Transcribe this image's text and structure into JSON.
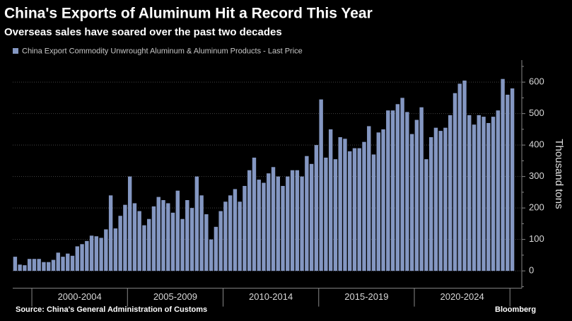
{
  "chart_data": {
    "type": "bar",
    "title": "China's Exports of Aluminum Hit a Record This Year",
    "subtitle": "Overseas sales have soared over the past two decades",
    "series": [
      {
        "name": "China Export Commodity Unwrought Aluminum & Aluminum Products - Last Price",
        "color": "#8497c2",
        "values": [
          45,
          20,
          18,
          38,
          38,
          38,
          28,
          28,
          35,
          58,
          45,
          55,
          48,
          78,
          85,
          95,
          112,
          110,
          105,
          132,
          240,
          135,
          175,
          210,
          300,
          215,
          190,
          145,
          165,
          205,
          235,
          225,
          215,
          185,
          255,
          165,
          225,
          200,
          300,
          240,
          180,
          100,
          140,
          190,
          220,
          240,
          260,
          220,
          270,
          320,
          360,
          290,
          280,
          310,
          330,
          300,
          270,
          300,
          320,
          320,
          300,
          365,
          340,
          400,
          545,
          360,
          450,
          355,
          425,
          420,
          380,
          390,
          390,
          410,
          460,
          370,
          440,
          450,
          510,
          510,
          530,
          550,
          505,
          435,
          480,
          520,
          355,
          425,
          455,
          445,
          455,
          495,
          565,
          595,
          605,
          495,
          465,
          495,
          490,
          470,
          490,
          510,
          610,
          560,
          580
        ]
      }
    ],
    "categories": [
      null,
      null,
      null,
      null,
      null,
      null,
      null,
      null,
      null,
      null,
      null,
      null,
      null,
      null,
      null,
      null,
      null,
      null,
      null,
      null,
      null,
      null,
      null,
      null,
      null,
      null,
      null,
      null,
      null,
      null,
      null,
      null,
      null,
      null,
      null,
      null,
      null,
      null,
      null,
      null,
      null,
      null,
      null,
      null,
      null,
      null,
      null,
      null,
      null,
      null,
      null,
      null,
      null,
      null,
      null,
      null,
      null,
      null,
      null,
      null,
      null,
      null,
      null,
      null,
      null,
      null,
      null,
      null,
      null,
      null,
      null,
      null,
      null,
      null,
      null,
      null,
      null,
      null,
      null,
      null,
      null,
      null,
      null,
      null,
      null,
      null,
      null,
      null,
      null,
      null,
      null,
      null,
      null,
      null,
      null,
      null,
      null,
      null,
      null,
      null,
      null,
      null,
      null,
      null,
      null
    ],
    "period_labels": [
      "2000-2004",
      "2005-2009",
      "2010-2014",
      "2015-2019",
      "2020-2024"
    ],
    "ylabel": "Thousand tons",
    "ylim": [
      -55,
      670
    ],
    "yticks": [
      0,
      100,
      200,
      300,
      400,
      500,
      600
    ],
    "grid": true,
    "source": "Source: China's General Administration of Customs",
    "brand": "Bloomberg"
  }
}
